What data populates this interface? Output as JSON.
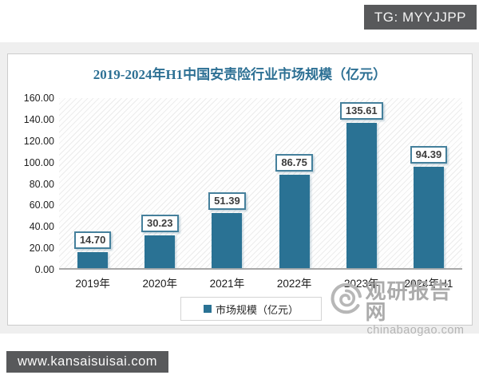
{
  "overlay": {
    "tg_label": "TG: MYYJJPP",
    "site_label": "www.kansaisuisai.com"
  },
  "watermark": {
    "logo": "swirl-icon",
    "name": "观研报告网",
    "domain": "chinabaogao.com"
  },
  "chart_data": {
    "type": "bar",
    "title": "2019-2024年H1中国安责险行业市场规模（亿元）",
    "categories": [
      "2019年",
      "2020年",
      "2021年",
      "2022年",
      "2023年",
      "2024年H1"
    ],
    "values": [
      14.7,
      30.23,
      51.39,
      86.75,
      135.61,
      94.39
    ],
    "value_labels": [
      "14.70",
      "30.23",
      "51.39",
      "86.75",
      "135.61",
      "94.39"
    ],
    "series_name": "市场规模（亿元）",
    "legend": [
      "市场规模（亿元）"
    ],
    "legend_position": "bottom",
    "xlabel": "",
    "ylabel": "",
    "ylim": [
      0,
      160
    ],
    "ytick_step": 20,
    "ytick_labels": [
      "0.00",
      "20.00",
      "40.00",
      "60.00",
      "80.00",
      "100.00",
      "120.00",
      "140.00",
      "160.00"
    ],
    "grid": false,
    "plot_hatch": true,
    "bar_color": "#2a7294",
    "label_box_border": "#45809c",
    "title_color": "#2d7094"
  },
  "colors": {
    "accent_teal": "#2a7294",
    "overlay_box_bg": "#58595b",
    "page_band_gray": "#efefef",
    "watermark_gray": "#ababab"
  }
}
